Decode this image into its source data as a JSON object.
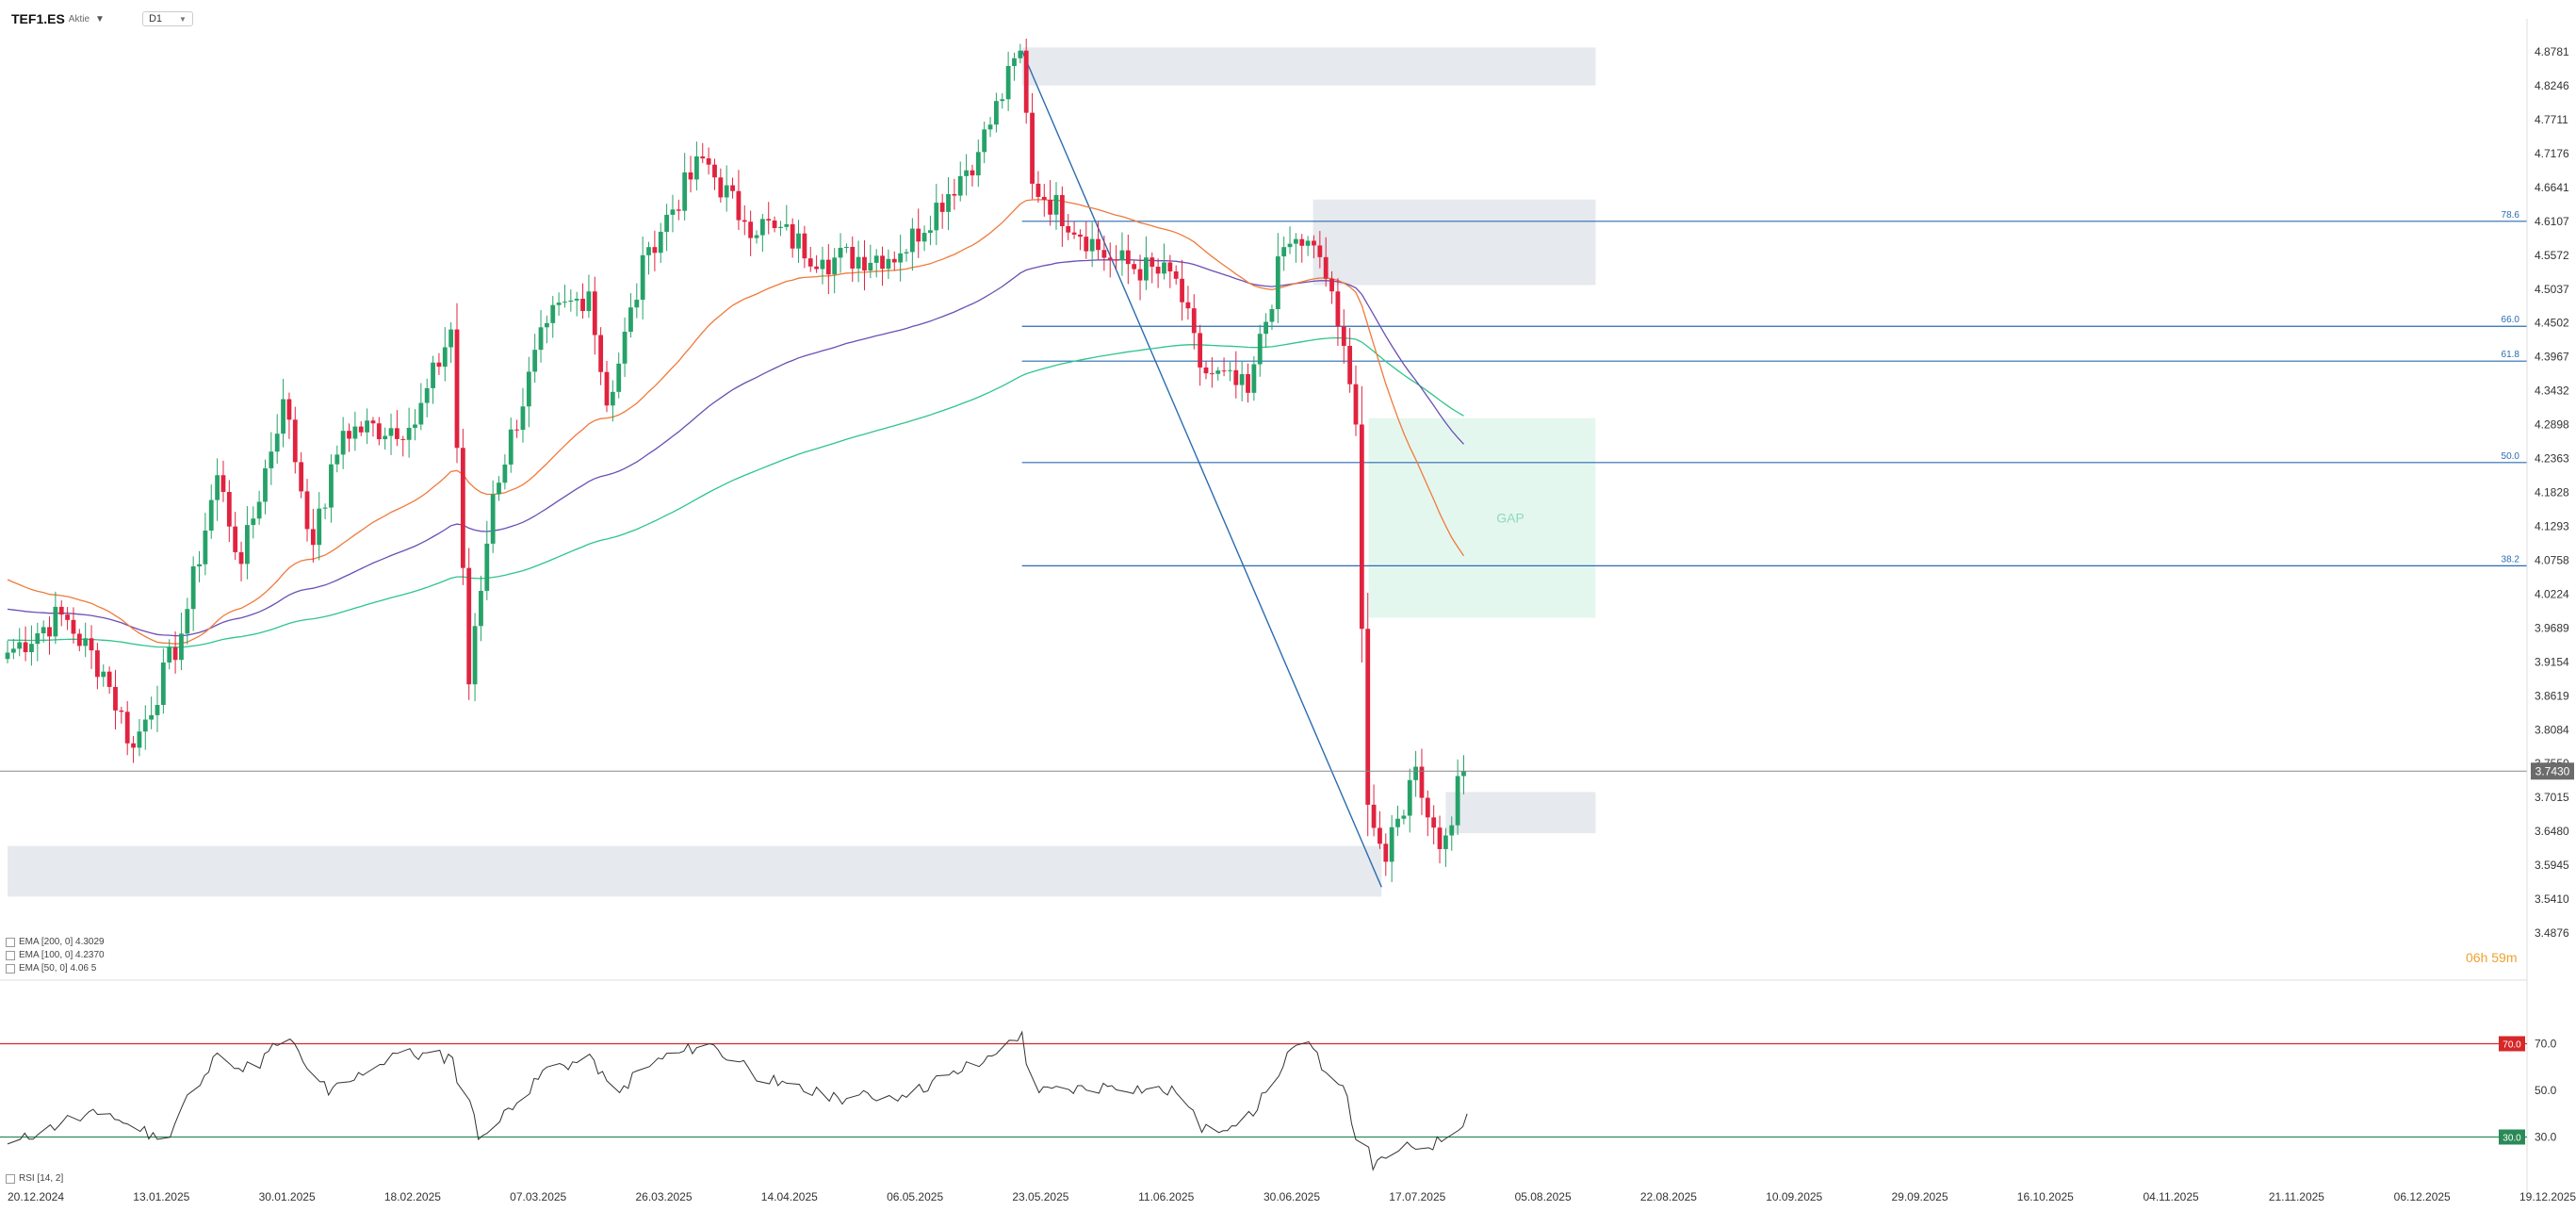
{
  "header": {
    "symbol": "TEF1.ES",
    "symbol_type": "Aktie",
    "timeframe": "D1"
  },
  "countdown": "06h 59m",
  "rsi_label": "RSI [14, 2]",
  "indicators": [
    {
      "label": "EMA [200, 0] 4.3029",
      "color": "#2ec58a"
    },
    {
      "label": "EMA [100, 0] 4.2370",
      "color": "#6a4fb5"
    },
    {
      "label": "EMA [50, 0] 4.06 5",
      "color": "#f07a3a"
    }
  ],
  "colors": {
    "up": "#26a269",
    "down": "#e0233f",
    "fib": "#2b6cb0",
    "zone": "#e6e9ee",
    "gap_zone": "#e4f7ef",
    "gap_text": "#8fd9b9",
    "rsi_line": "#333333",
    "rsi_upper": "#d62828",
    "rsi_lower": "#2e8b57",
    "price_tag": "#6b6b6b"
  },
  "chart_data": {
    "type": "candlestick",
    "instrument": "TEF1.ES",
    "timeframe": "D1",
    "y_axis": {
      "min": 3.4876,
      "max": 4.8781,
      "ticks": [
        "4.8781",
        "4.8246",
        "4.7711",
        "4.7176",
        "4.6641",
        "4.6107",
        "4.5572",
        "4.5037",
        "4.4502",
        "4.3967",
        "4.3432",
        "4.2898",
        "4.2363",
        "4.1828",
        "4.1293",
        "4.0758",
        "4.0224",
        "3.9689",
        "3.9154",
        "3.8619",
        "3.8084",
        "3.7550",
        "3.7015",
        "3.6480",
        "3.5945",
        "3.5410",
        "3.4876"
      ]
    },
    "x_axis": {
      "labels": [
        "20.12.2024",
        "13.01.2025",
        "30.01.2025",
        "18.02.2025",
        "07.03.2025",
        "26.03.2025",
        "14.04.2025",
        "06.05.2025",
        "23.05.2025",
        "11.06.2025",
        "30.06.2025",
        "17.07.2025",
        "05.08.2025",
        "22.08.2025",
        "10.09.2025",
        "29.09.2025",
        "16.10.2025",
        "04.11.2025",
        "21.11.2025",
        "06.12.2025",
        "19.12.2025"
      ]
    },
    "current_price": "3.7430",
    "anchors": [
      {
        "date": "2024-12-20",
        "close": 3.93
      },
      {
        "date": "2025-01-02",
        "close": 3.99
      },
      {
        "date": "2025-01-13",
        "close": 3.9
      },
      {
        "date": "2025-01-20",
        "close": 3.78
      },
      {
        "date": "2025-01-30",
        "close": 3.96
      },
      {
        "date": "2025-02-07",
        "close": 4.21
      },
      {
        "date": "2025-02-13",
        "close": 4.07
      },
      {
        "date": "2025-02-24",
        "close": 4.33
      },
      {
        "date": "2025-03-03",
        "close": 4.1
      },
      {
        "date": "2025-03-10",
        "close": 4.28
      },
      {
        "date": "2025-03-26",
        "close": 4.29
      },
      {
        "date": "2025-04-03",
        "close": 4.44
      },
      {
        "date": "2025-04-08",
        "close": 3.88
      },
      {
        "date": "2025-04-14",
        "close": 4.18
      },
      {
        "date": "2025-04-25",
        "close": 4.45
      },
      {
        "date": "2025-05-06",
        "close": 4.5
      },
      {
        "date": "2025-05-09",
        "close": 4.32
      },
      {
        "date": "2025-05-20",
        "close": 4.57
      },
      {
        "date": "2025-06-02",
        "close": 4.71
      },
      {
        "date": "2025-06-11",
        "close": 4.61
      },
      {
        "date": "2025-06-18",
        "close": 4.6
      },
      {
        "date": "2025-06-30",
        "close": 4.55
      },
      {
        "date": "2025-07-17",
        "close": 4.56
      },
      {
        "date": "2025-08-05",
        "close": 4.72
      },
      {
        "date": "2025-08-14",
        "close": 4.88
      },
      {
        "date": "2025-08-18",
        "close": 4.67
      },
      {
        "date": "2025-09-04",
        "close": 4.55
      },
      {
        "date": "2025-09-19",
        "close": 4.52
      },
      {
        "date": "2025-09-25",
        "close": 4.38
      },
      {
        "date": "2025-10-07",
        "close": 4.34
      },
      {
        "date": "2025-10-15",
        "close": 4.57
      },
      {
        "date": "2025-10-21",
        "close": 4.58
      },
      {
        "date": "2025-10-27",
        "close": 4.5
      },
      {
        "date": "2025-10-31",
        "close": 4.29
      },
      {
        "date": "2025-11-04",
        "close": 3.69
      },
      {
        "date": "2025-11-07",
        "close": 3.6
      },
      {
        "date": "2025-11-14",
        "close": 3.75
      },
      {
        "date": "2025-11-20",
        "close": 3.62
      },
      {
        "date": "2025-11-26",
        "close": 3.743
      }
    ],
    "ema": [
      {
        "name": "EMA [200, 0] 4.3029",
        "period": 200,
        "last_value": 4.3029
      },
      {
        "name": "EMA [100, 0] 4.2370",
        "period": 100,
        "last_value": 4.237
      },
      {
        "name": "EMA [50, 0] 4.06 5",
        "period": 50
      }
    ],
    "fibonacci": {
      "swing_high": {
        "date": "2025-08-14",
        "price": 4.88
      },
      "swing_low": {
        "date": "2025-11-06",
        "price": 3.56
      },
      "levels": [
        {
          "label": "78.6",
          "price": 4.6107
        },
        {
          "label": "66.0",
          "price": 4.445
        },
        {
          "label": "61.8",
          "price": 4.39
        },
        {
          "label": "50.0",
          "price": 4.23
        },
        {
          "label": "38.2",
          "price": 4.067
        }
      ]
    },
    "zones": [
      {
        "from_date": "2025-08-14",
        "to_date": "2025-12-26",
        "low": 4.825,
        "high": 4.885
      },
      {
        "from_date": "2025-10-21",
        "to_date": "2025-12-26",
        "low": 4.51,
        "high": 4.645
      },
      {
        "from_date": "2024-12-20",
        "to_date": "2025-11-06",
        "low": 3.545,
        "high": 3.625
      },
      {
        "from_date": "2025-11-21",
        "to_date": "2025-12-26",
        "low": 3.645,
        "high": 3.71
      }
    ],
    "gap_zone": {
      "label": "GAP",
      "from_date": "2025-11-03",
      "to_date": "2025-12-26",
      "low": 3.985,
      "high": 4.3
    },
    "rsi": {
      "name": "RSI [14, 2]",
      "ylim": [
        10,
        90
      ],
      "levels": [
        {
          "label": "70.0",
          "value": 70
        },
        {
          "label": "50.0",
          "value": 50
        },
        {
          "label": "30.0",
          "value": 30
        }
      ],
      "anchors": [
        {
          "date": "2024-12-20",
          "value": 27
        },
        {
          "date": "2025-01-02",
          "value": 37
        },
        {
          "date": "2025-01-13",
          "value": 40
        },
        {
          "date": "2025-01-24",
          "value": 29
        },
        {
          "date": "2025-02-07",
          "value": 66
        },
        {
          "date": "2025-02-13",
          "value": 58
        },
        {
          "date": "2025-02-24",
          "value": 72
        },
        {
          "date": "2025-03-05",
          "value": 48
        },
        {
          "date": "2025-03-20",
          "value": 66
        },
        {
          "date": "2025-04-03",
          "value": 64
        },
        {
          "date": "2025-04-09",
          "value": 29
        },
        {
          "date": "2025-04-25",
          "value": 60
        },
        {
          "date": "2025-05-06",
          "value": 63
        },
        {
          "date": "2025-05-12",
          "value": 49
        },
        {
          "date": "2025-05-20",
          "value": 62
        },
        {
          "date": "2025-06-02",
          "value": 70
        },
        {
          "date": "2025-06-11",
          "value": 60
        },
        {
          "date": "2025-06-18",
          "value": 52
        },
        {
          "date": "2025-07-02",
          "value": 47
        },
        {
          "date": "2025-07-17",
          "value": 48
        },
        {
          "date": "2025-08-05",
          "value": 62
        },
        {
          "date": "2025-08-14",
          "value": 75
        },
        {
          "date": "2025-08-18",
          "value": 49
        },
        {
          "date": "2025-09-04",
          "value": 52
        },
        {
          "date": "2025-09-19",
          "value": 49
        },
        {
          "date": "2025-09-25",
          "value": 32
        },
        {
          "date": "2025-10-07",
          "value": 39
        },
        {
          "date": "2025-10-16",
          "value": 68
        },
        {
          "date": "2025-10-21",
          "value": 68
        },
        {
          "date": "2025-10-28",
          "value": 52
        },
        {
          "date": "2025-11-04",
          "value": 16
        },
        {
          "date": "2025-11-10",
          "value": 24
        },
        {
          "date": "2025-11-20",
          "value": 28
        },
        {
          "date": "2025-11-26",
          "value": 40
        }
      ]
    }
  }
}
